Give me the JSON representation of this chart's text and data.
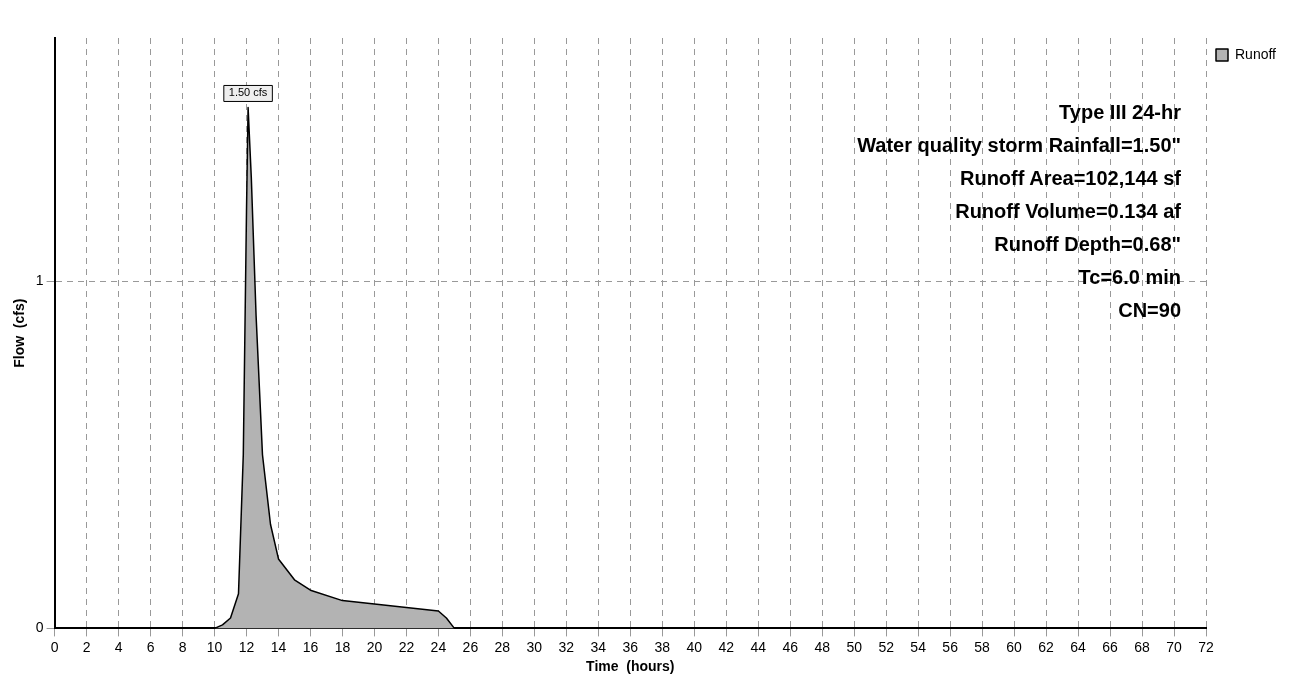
{
  "chart_data": {
    "type": "area",
    "xlabel": "Time  (hours)",
    "ylabel": "Flow  (cfs)",
    "x": [
      0,
      2,
      4,
      6,
      8,
      10,
      10.5,
      11,
      11.5,
      11.8,
      12,
      12.1,
      12.3,
      12.6,
      13,
      13.5,
      14,
      15,
      16,
      18,
      20,
      22,
      24,
      24.5,
      25,
      26,
      30,
      40,
      50,
      60,
      72
    ],
    "series": [
      {
        "name": "Runoff",
        "color": "#b3b3b3",
        "values": [
          0,
          0,
          0,
          0,
          0,
          0,
          0.01,
          0.03,
          0.1,
          0.5,
          1.2,
          1.5,
          1.3,
          0.9,
          0.5,
          0.3,
          0.2,
          0.14,
          0.11,
          0.08,
          0.07,
          0.06,
          0.05,
          0.03,
          0,
          0,
          0,
          0,
          0,
          0,
          0
        ]
      }
    ],
    "xlim": [
      0,
      72
    ],
    "xticks": [
      0,
      2,
      4,
      6,
      8,
      10,
      12,
      14,
      16,
      18,
      20,
      22,
      24,
      26,
      28,
      30,
      32,
      34,
      36,
      38,
      40,
      42,
      44,
      46,
      48,
      50,
      52,
      54,
      56,
      58,
      60,
      62,
      64,
      66,
      68,
      70,
      72
    ],
    "ylim": [
      0,
      1.7
    ],
    "yticks": [
      0,
      1
    ],
    "grid": true,
    "legend": "top right",
    "marker": "none",
    "line_style": "solid",
    "annotations": [
      {
        "text": "1.50 cfs",
        "x": 12.1,
        "y": 1.5
      },
      "Type III 24-hr",
      "Water quality storm Rainfall=1.50\"",
      "Runoff Area=102,144 sf",
      "Runoff Volume=0.134 af",
      "Runoff Depth=0.68\"",
      "Tc=6.0 min",
      "CN=90"
    ]
  }
}
